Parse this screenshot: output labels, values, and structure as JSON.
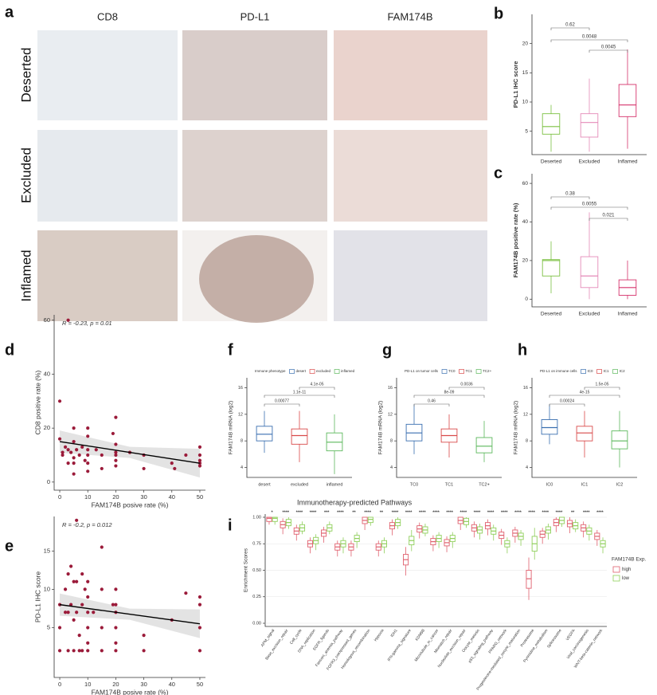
{
  "figure": {
    "panel_labels": [
      "a",
      "b",
      "c",
      "d",
      "e",
      "f",
      "g",
      "h",
      "i"
    ]
  },
  "image_grid": {
    "columns": [
      "CD8",
      "PD-L1",
      "FAM174B"
    ],
    "rows": [
      "Deserted",
      "Excluded",
      "Inflamed"
    ]
  },
  "chart_data": [
    {
      "type": "box",
      "ylabel": "PD-L1 IHC score",
      "categories": [
        "Deserted",
        "Excluded",
        "Inflamed"
      ],
      "colors": [
        "#7cc043",
        "#e58ab8",
        "#d6336c"
      ],
      "median": [
        5.8,
        6.5,
        9.5
      ],
      "q1": [
        4.5,
        4,
        7.5
      ],
      "q3": [
        8,
        8,
        13
      ],
      "whisker_low": [
        1.5,
        1.5,
        2
      ],
      "whisker_high": [
        9.5,
        14,
        19
      ],
      "comparisons": [
        "0.62",
        "0.0048",
        "0.0045"
      ],
      "ylim": [
        1,
        25
      ],
      "yticks": [
        5,
        10,
        15,
        20
      ]
    },
    {
      "type": "box",
      "ylabel": "FAM174B positive rate (%)",
      "categories": [
        "Deserted",
        "Excluded",
        "Inflamed"
      ],
      "colors": [
        "#7cc043",
        "#e58ab8",
        "#d6336c"
      ],
      "median": [
        20,
        12,
        6
      ],
      "q1": [
        12,
        6,
        2
      ],
      "q3": [
        20.5,
        22,
        10
      ],
      "whisker_low": [
        3,
        0,
        0
      ],
      "whisker_high": [
        30,
        45,
        20
      ],
      "comparisons": [
        "0.38",
        "0.0055",
        "0.021"
      ],
      "ylim": [
        -4,
        65
      ],
      "yticks": [
        0,
        20,
        40,
        60
      ]
    },
    {
      "type": "scatter",
      "annotation": "R = -0.23, p = 0.01",
      "xlabel": "FAM174B posive rate (%)",
      "ylabel": "CD8 positive rate (%)",
      "color": "#9b1b3a",
      "x": [
        0,
        0,
        1,
        1,
        2,
        3,
        3,
        3,
        4,
        5,
        5,
        5,
        5,
        5,
        6,
        7,
        8,
        9,
        10,
        10,
        10,
        10,
        10,
        10,
        13,
        15,
        15,
        19,
        20,
        20,
        20,
        20,
        20,
        20,
        25,
        30,
        30,
        40,
        41,
        45,
        50,
        50,
        50,
        50,
        50
      ],
      "y": [
        30,
        16,
        11,
        10,
        13,
        12,
        7,
        60,
        11,
        20,
        15,
        9,
        7,
        3,
        12,
        10,
        13,
        8,
        20,
        17,
        12,
        10,
        7,
        4,
        12,
        10,
        5,
        18,
        24,
        14,
        11,
        10,
        8,
        6,
        11,
        10,
        5,
        7,
        5,
        10,
        13,
        10,
        8,
        7,
        6
      ],
      "fit": {
        "x": [
          0,
          50
        ],
        "y": [
          15,
          7
        ]
      },
      "xlim": [
        -2,
        52
      ],
      "ylim": [
        -3,
        62
      ],
      "xticks": [
        0,
        10,
        20,
        30,
        40,
        50
      ],
      "yticks": [
        0,
        20,
        40,
        60
      ]
    },
    {
      "type": "scatter",
      "annotation": "R = -0.2, p = 0.012",
      "xlabel": "FAM174B posive rate (%)",
      "ylabel": "PD-L1 IHC score",
      "color": "#9b1b3a",
      "x": [
        0,
        0,
        0,
        2,
        2,
        3,
        3,
        3,
        4,
        4,
        5,
        5,
        5,
        6,
        6,
        6,
        7,
        7,
        8,
        8,
        8,
        9,
        10,
        10,
        10,
        10,
        10,
        10,
        12,
        15,
        15,
        15,
        15,
        19,
        20,
        20,
        20,
        20,
        20,
        20,
        30,
        30,
        40,
        45,
        50,
        50,
        50,
        50
      ],
      "y": [
        8,
        5,
        2,
        7,
        10,
        12,
        7,
        2,
        13,
        8,
        11,
        6,
        2,
        19,
        11,
        7,
        4,
        2,
        12,
        8,
        2,
        10,
        11,
        9,
        7,
        5,
        3,
        2,
        7,
        15.5,
        10,
        5,
        2,
        8,
        10,
        8,
        7,
        5,
        3,
        2,
        4,
        2,
        6,
        9.5,
        9,
        8,
        5,
        2
      ],
      "fit": {
        "x": [
          0,
          50
        ],
        "y": [
          8,
          5.5
        ]
      },
      "xlim": [
        -2,
        52
      ],
      "ylim": [
        -1.5,
        19.5
      ],
      "xticks": [
        0,
        10,
        20,
        30,
        40,
        50
      ],
      "yticks": [
        5,
        10,
        15
      ]
    },
    {
      "type": "box",
      "ylabel": "FAM174B mRNA (log2)",
      "legend_title": "Immune phenotype",
      "categories": [
        "desert",
        "excluded",
        "inflamed"
      ],
      "colors": [
        "#3a6fb0",
        "#d94a4a",
        "#5cb85c"
      ],
      "median": [
        9,
        8.8,
        7.8
      ],
      "q1": [
        8,
        7.5,
        6.5
      ],
      "q3": [
        10.2,
        9.8,
        9.2
      ],
      "whisker_low": [
        6.2,
        4.8,
        3
      ],
      "whisker_high": [
        12.5,
        12.5,
        12
      ],
      "comparisons": [
        "0.00077",
        "1.1e-11",
        "4.1e-05"
      ],
      "ylim": [
        2.5,
        17.5
      ],
      "yticks": [
        4,
        8,
        12,
        16
      ]
    },
    {
      "type": "box",
      "ylabel": "FAM174B mRNA (log2)",
      "legend_title": "PD-L1 on tumor cells",
      "categories": [
        "TC0",
        "TC1",
        "TC2+"
      ],
      "colors": [
        "#3a6fb0",
        "#d94a4a",
        "#5cb85c"
      ],
      "median": [
        9.2,
        8.8,
        7.2
      ],
      "q1": [
        8,
        7.8,
        6.2
      ],
      "q3": [
        10.5,
        9.8,
        8.5
      ],
      "whisker_low": [
        6,
        5.5,
        4.8
      ],
      "whisker_high": [
        13.5,
        12,
        11
      ],
      "comparisons": [
        "0.46",
        "8e-09",
        "0.0036"
      ],
      "ylim": [
        2.5,
        17.5
      ],
      "yticks": [
        4,
        8,
        12,
        16
      ]
    },
    {
      "type": "box",
      "ylabel": "FAM174B mRNA (log2)",
      "legend_title": "PD-L1 on immune cells",
      "categories": [
        "IC0",
        "IC1",
        "IC2"
      ],
      "colors": [
        "#3a6fb0",
        "#d94a4a",
        "#5cb85c"
      ],
      "median": [
        10,
        9.2,
        8
      ],
      "q1": [
        9,
        8,
        6.8
      ],
      "q3": [
        11.2,
        10.2,
        9.5
      ],
      "whisker_low": [
        7.5,
        5.5,
        4
      ],
      "whisker_high": [
        13.5,
        12.5,
        12.5
      ],
      "comparisons": [
        "0.00024",
        "4e-15",
        "1.5e-05"
      ],
      "ylim": [
        2.5,
        17.5
      ],
      "yticks": [
        4,
        8,
        12,
        16
      ]
    },
    {
      "type": "grouped-box",
      "title": "Immunotherapy-predicted Pathways",
      "ylabel": "Enrichment Scores",
      "legend_title": "FAM174B Exp.",
      "categories": [
        "APM_signal",
        "Base_excision_repair",
        "Cell_cycle",
        "DNA_replication",
        "EGFR_ligands",
        "Fanconi_anemia_pathway",
        "FGFR3_coexpressed_genes",
        "Homologous_recombination",
        "Hypoxia",
        "IDH1",
        "IFN-gamma_signature",
        "KDM5B",
        "Microtubule_in_cancer",
        "Mismatch_repair",
        "Nucleotide_excision_repair",
        "Oocyte_meiosis",
        "p53_signaling_pathway",
        "PPARG_network",
        "Progesterone-mediated_oocyte_maturation",
        "Proteasome",
        "Pyrimidine_metabolism",
        "Spliceosome",
        "VEGFA",
        "Viral_carcinogenesis",
        "WNT-beta-catenin_network"
      ],
      "significance": [
        "*",
        "****",
        "****",
        "****",
        "***",
        "****",
        "**",
        "****",
        "**",
        "****",
        "****",
        "****",
        "****",
        "****",
        "****",
        "****",
        "****",
        "****",
        "****",
        "****",
        "****",
        "****",
        "**",
        "****",
        "****"
      ],
      "series": [
        {
          "name": "high",
          "color": "#e0606e",
          "median": [
            0.99,
            0.93,
            0.87,
            0.75,
            0.85,
            0.72,
            0.72,
            0.97,
            0.72,
            0.92,
            0.6,
            0.89,
            0.77,
            0.76,
            0.97,
            0.9,
            0.92,
            0.83,
            0.85,
            0.42,
            0.84,
            0.95,
            0.94,
            0.9,
            0.82
          ],
          "q1": [
            0.96,
            0.9,
            0.84,
            0.72,
            0.82,
            0.69,
            0.69,
            0.94,
            0.69,
            0.89,
            0.55,
            0.86,
            0.74,
            0.73,
            0.94,
            0.87,
            0.89,
            0.8,
            0.82,
            0.33,
            0.81,
            0.92,
            0.91,
            0.87,
            0.79
          ],
          "q3": [
            1.0,
            0.96,
            0.9,
            0.78,
            0.88,
            0.75,
            0.75,
            1.0,
            0.75,
            0.95,
            0.65,
            0.92,
            0.8,
            0.79,
            1.0,
            0.93,
            0.95,
            0.86,
            0.88,
            0.5,
            0.87,
            0.98,
            0.97,
            0.93,
            0.85
          ],
          "whisker_low": [
            0.93,
            0.84,
            0.78,
            0.66,
            0.76,
            0.63,
            0.63,
            0.88,
            0.63,
            0.83,
            0.45,
            0.8,
            0.68,
            0.67,
            0.88,
            0.81,
            0.83,
            0.74,
            0.76,
            0.22,
            0.75,
            0.86,
            0.85,
            0.81,
            0.73
          ],
          "whisker_high": [
            1.0,
            0.99,
            0.93,
            0.81,
            0.91,
            0.78,
            0.78,
            1.0,
            0.78,
            0.98,
            0.72,
            0.95,
            0.83,
            0.82,
            1.0,
            0.96,
            0.98,
            0.89,
            0.91,
            0.62,
            0.9,
            1.0,
            1.0,
            0.96,
            0.88
          ]
        },
        {
          "name": "low",
          "color": "#8fcf5a",
          "median": [
            0.99,
            0.95,
            0.9,
            0.78,
            0.9,
            0.75,
            0.8,
            0.98,
            0.75,
            0.95,
            0.78,
            0.88,
            0.8,
            0.8,
            0.96,
            0.88,
            0.87,
            0.75,
            0.82,
            0.75,
            0.88,
            0.97,
            0.92,
            0.87,
            0.75
          ],
          "q1": [
            0.96,
            0.92,
            0.87,
            0.75,
            0.87,
            0.72,
            0.77,
            0.95,
            0.72,
            0.92,
            0.74,
            0.85,
            0.77,
            0.77,
            0.93,
            0.85,
            0.84,
            0.72,
            0.79,
            0.68,
            0.85,
            0.94,
            0.89,
            0.84,
            0.72
          ],
          "q3": [
            1.0,
            0.98,
            0.93,
            0.81,
            0.93,
            0.78,
            0.83,
            1.0,
            0.78,
            0.98,
            0.82,
            0.91,
            0.83,
            0.83,
            0.99,
            0.91,
            0.9,
            0.78,
            0.85,
            0.82,
            0.91,
            1.0,
            0.95,
            0.9,
            0.78
          ],
          "whisker_low": [
            0.93,
            0.89,
            0.84,
            0.69,
            0.84,
            0.66,
            0.71,
            0.92,
            0.66,
            0.89,
            0.68,
            0.82,
            0.71,
            0.71,
            0.9,
            0.79,
            0.78,
            0.66,
            0.73,
            0.6,
            0.79,
            0.91,
            0.86,
            0.78,
            0.66
          ],
          "whisker_high": [
            1.0,
            1.0,
            0.96,
            0.84,
            0.96,
            0.81,
            0.86,
            1.0,
            0.81,
            1.0,
            0.88,
            0.94,
            0.86,
            0.86,
            1.0,
            0.94,
            0.93,
            0.81,
            0.88,
            0.9,
            0.94,
            1.0,
            0.98,
            0.93,
            0.81
          ]
        }
      ],
      "ylim": [
        -0.03,
        1.03
      ],
      "grid": true,
      "yticks": [
        {
          "value": 0,
          "label": "0.00"
        },
        {
          "value": 0.25,
          "label": "0.25"
        },
        {
          "value": 0.5,
          "label": "0.50"
        },
        {
          "value": 0.75,
          "label": "0.75"
        },
        {
          "value": 1,
          "label": "1.00"
        }
      ]
    }
  ]
}
